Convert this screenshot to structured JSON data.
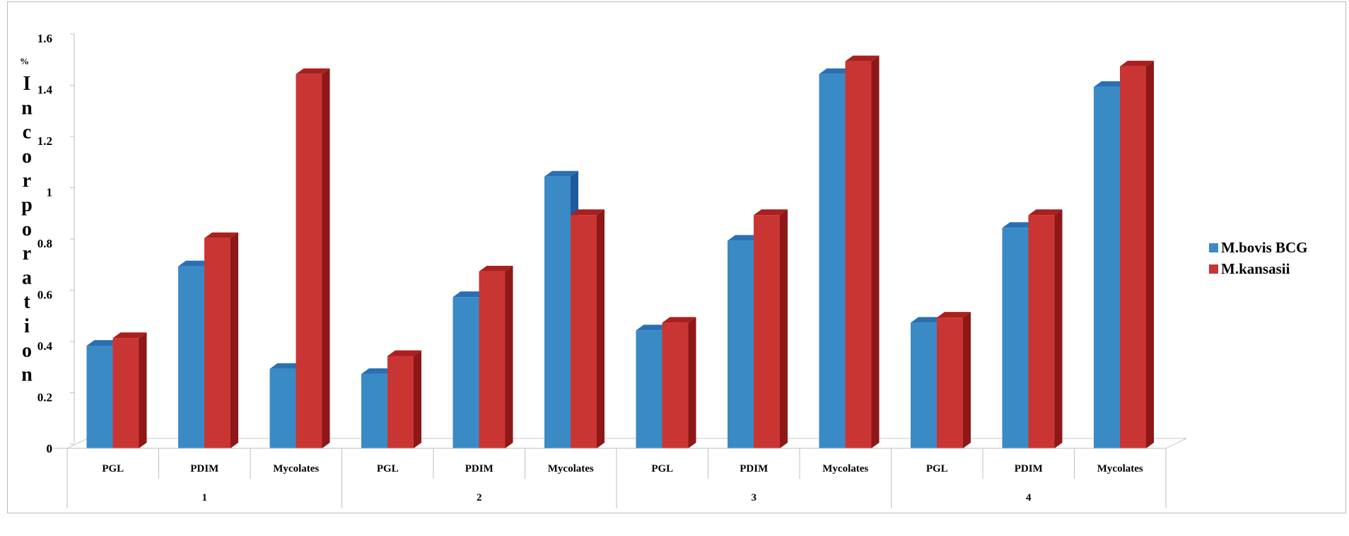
{
  "chart_data": {
    "type": "bar",
    "title": "",
    "ylabel": "% Incorporation",
    "ylabel_prefix": "%",
    "ylabel_main": "Incorporation",
    "ylim": [
      0,
      1.6
    ],
    "yticks": [
      "0",
      "0.2",
      "0.4",
      "0.6",
      "0.8",
      "1",
      "1.2",
      "1.4",
      "1.6"
    ],
    "groups": [
      "1",
      "2",
      "3",
      "4"
    ],
    "subcategories": [
      "PGL",
      "PDIM",
      "Mycolates"
    ],
    "categories": [
      "PGL",
      "PDIM",
      "Mycolates",
      "PGL",
      "PDIM",
      "Mycolates",
      "PGL",
      "PDIM",
      "Mycolates",
      "PGL",
      "PDIM",
      "Mycolates"
    ],
    "series": [
      {
        "name": "M.bovis BCG",
        "color": "#3a8ac6",
        "side_color": "#1e5a9c",
        "top_color": "#2b6fb3",
        "values": [
          0.4,
          0.71,
          0.31,
          0.29,
          0.59,
          1.06,
          0.46,
          0.81,
          1.46,
          0.49,
          0.86,
          1.41
        ]
      },
      {
        "name": "M.kansasii",
        "color": "#c93533",
        "side_color": "#8e1717",
        "top_color": "#a92020",
        "values": [
          0.43,
          0.82,
          1.46,
          0.36,
          0.69,
          0.91,
          0.49,
          0.91,
          1.51,
          0.51,
          0.91,
          1.49
        ]
      }
    ],
    "legend_position": "right",
    "grid": false
  }
}
